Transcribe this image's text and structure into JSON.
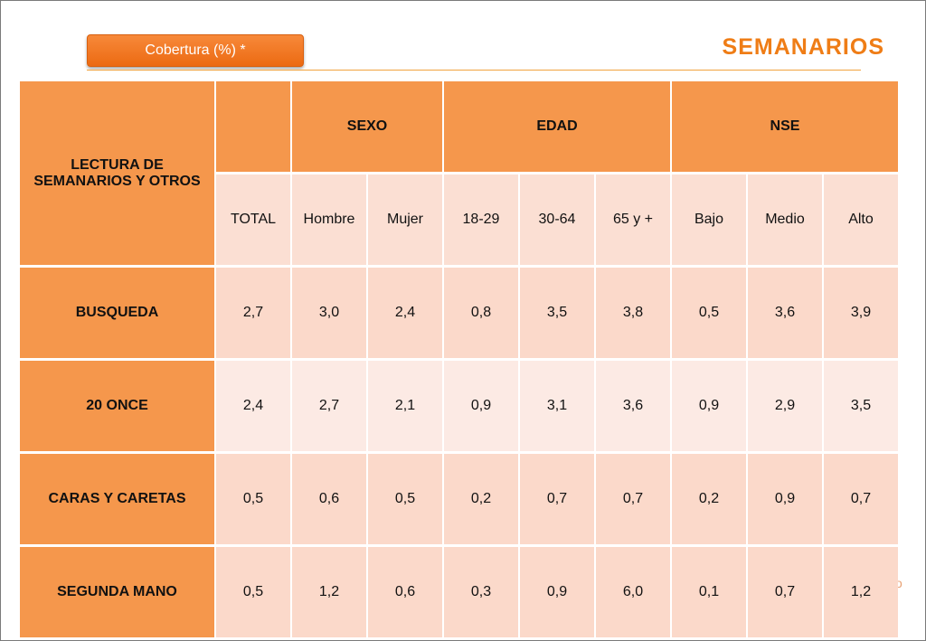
{
  "header": {
    "badge_label": "Cobertura (%) *",
    "title": "SEMANARIOS"
  },
  "table": {
    "corner_label": "LECTURA DE SEMANARIOS Y OTROS",
    "groups": [
      "SEXO",
      "EDAD",
      "NSE"
    ],
    "columns": [
      "TOTAL",
      "Hombre",
      "Mujer",
      "18-29",
      "30-64",
      "65 y +",
      "Bajo",
      "Medio",
      "Alto"
    ],
    "rows": [
      {
        "label": "BUSQUEDA",
        "values": [
          "2,7",
          "3,0",
          "2,4",
          "0,8",
          "3,5",
          "3,8",
          "0,5",
          "3,6",
          "3,9"
        ]
      },
      {
        "label": "20 ONCE",
        "values": [
          "2,4",
          "2,7",
          "2,1",
          "0,9",
          "3,1",
          "3,6",
          "0,9",
          "2,9",
          "3,5"
        ]
      },
      {
        "label": "CARAS Y CARETAS",
        "values": [
          "0,5",
          "0,6",
          "0,5",
          "0,2",
          "0,7",
          "0,7",
          "0,2",
          "0,9",
          "0,7"
        ]
      },
      {
        "label": "SEGUNDA MANO",
        "values": [
          "0,5",
          "1,2",
          "0,6",
          "0,3",
          "0,9",
          "6,0",
          "0,1",
          "0,7",
          "1,2"
        ]
      }
    ]
  },
  "edge_mark": "o",
  "colors": {
    "accent": "#ef7d16",
    "header_fill": "#f5974c",
    "cell_fill": "#fbd9ca",
    "cell_fill_alt": "#fceae4"
  }
}
